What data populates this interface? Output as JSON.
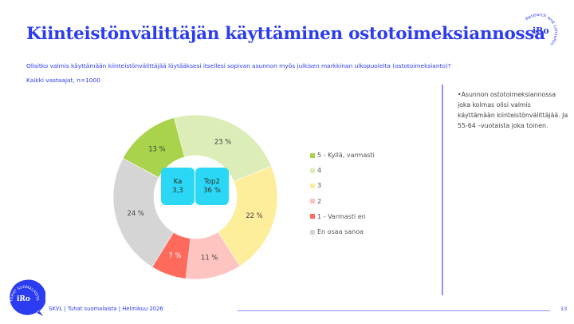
{
  "header": {
    "title": "Kiinteistönvälittäjän käyttäminen ostotoimeksiannossa",
    "question": "Olisitko valmis käyttämään kiinteistönvälittäjää löytääksesi itsellesi sopivan asunnon myös julkisen markkinan ulkopuolelta (ostotoimeksianto)?",
    "base": "Kaikki vastaajat, n=1000"
  },
  "logo_top": {
    "text": "iRo",
    "arc_text": "Research and consulting"
  },
  "kpis": [
    {
      "label": "Ka",
      "value": "3,3"
    },
    {
      "label": "Top2",
      "value": "36 %"
    }
  ],
  "chart_data": {
    "type": "pie",
    "subtype": "donut",
    "title": "Kiinteistönvälittäjän käyttäminen ostotoimeksiannossa",
    "categories": [
      "5 - Kyllä, varmasti",
      "4",
      "3",
      "2",
      "1 - Varmasti en",
      "En osaa sanoa"
    ],
    "values": [
      13,
      23,
      22,
      11,
      7,
      24
    ],
    "labels": [
      "13 %",
      "23 %",
      "22 %",
      "11 %",
      "7 %",
      "24 %"
    ],
    "colors": [
      "#a8d34a",
      "#dcedb8",
      "#fdee9b",
      "#fec4c0",
      "#fe6b5c",
      "#d5d5d5"
    ],
    "draw_order": [
      1,
      2,
      3,
      4,
      5,
      0
    ],
    "start_angle_deg": -15,
    "legend_position": "right",
    "summary": {
      "mean": "3,3",
      "top2": "36 %"
    }
  },
  "legend": [
    {
      "label": "5 - Kyllä, varmasti",
      "color": "#a8d34a"
    },
    {
      "label": "4",
      "color": "#dcedb8"
    },
    {
      "label": "3",
      "color": "#fdee9b"
    },
    {
      "label": "2",
      "color": "#fec4c0"
    },
    {
      "label": "1 - Varmasti en",
      "color": "#fe6b5c"
    },
    {
      "label": "En osaa sanoa",
      "color": "#d5d5d5"
    }
  ],
  "note": "•Asunnon ostotoimeksiannossa joka kolmas olisi valmis käyttämään kiinteistönvälittäjää.  Ja 55-64 –vuotaista joka toinen.",
  "footer": {
    "text": "SKVL | Tuhat suomalaista | Helmikuu 2026",
    "page": "13",
    "badge_text": "iRo",
    "badge_arc": "TUHAT SUOMALAISTA"
  },
  "colors": {
    "brand": "#2c3cf0",
    "accent_line": "#8c92f7",
    "kpi_bg": "#2ad8f5"
  }
}
